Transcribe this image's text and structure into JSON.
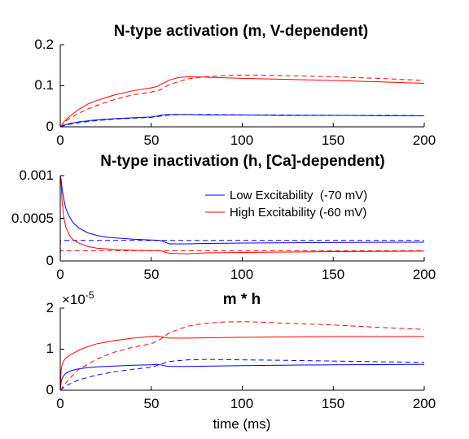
{
  "chart_data": [
    {
      "type": "line",
      "title": "N-type activation (m, V-dependent)",
      "xlabel": "",
      "ylabel": "",
      "xlim": [
        0,
        200
      ],
      "ylim": [
        0,
        0.2
      ],
      "xticks": [
        "0",
        "50",
        "100",
        "150",
        "200"
      ],
      "yticks": [
        "0",
        "0.1",
        "0.2"
      ],
      "exponent_label": "",
      "grid": false,
      "series": [
        {
          "color": "#0000ff",
          "dash": "solid",
          "x": [
            0,
            2,
            5,
            10,
            20,
            30,
            40,
            50,
            53,
            56,
            60,
            70,
            80,
            100,
            120,
            150,
            180,
            200
          ],
          "y": [
            0,
            0.004,
            0.008,
            0.012,
            0.017,
            0.02,
            0.022,
            0.024,
            0.026,
            0.029,
            0.03,
            0.03,
            0.029,
            0.029,
            0.028,
            0.028,
            0.027,
            0.027
          ]
        },
        {
          "color": "#0000ff",
          "dash": "dashed",
          "x": [
            0,
            2,
            5,
            10,
            20,
            30,
            40,
            50,
            55,
            60,
            70,
            80,
            100,
            120,
            150,
            180,
            200
          ],
          "y": [
            0,
            0.003,
            0.006,
            0.01,
            0.015,
            0.019,
            0.021,
            0.023,
            0.026,
            0.029,
            0.03,
            0.03,
            0.029,
            0.029,
            0.028,
            0.028,
            0.027
          ]
        },
        {
          "color": "#ff0000",
          "dash": "solid",
          "x": [
            0,
            2,
            5,
            10,
            15,
            20,
            30,
            40,
            50,
            53,
            56,
            60,
            65,
            70,
            80,
            100,
            120,
            150,
            180,
            200
          ],
          "y": [
            0,
            0.012,
            0.025,
            0.042,
            0.055,
            0.064,
            0.078,
            0.088,
            0.095,
            0.098,
            0.105,
            0.114,
            0.12,
            0.122,
            0.121,
            0.118,
            0.116,
            0.113,
            0.109,
            0.106
          ]
        },
        {
          "color": "#ff0000",
          "dash": "dashed",
          "x": [
            0,
            2,
            5,
            10,
            15,
            20,
            30,
            40,
            50,
            55,
            60,
            70,
            80,
            90,
            100,
            110,
            120,
            150,
            180,
            200
          ],
          "y": [
            0,
            0.01,
            0.02,
            0.033,
            0.043,
            0.052,
            0.067,
            0.078,
            0.085,
            0.09,
            0.103,
            0.117,
            0.122,
            0.125,
            0.126,
            0.126,
            0.125,
            0.122,
            0.117,
            0.113
          ]
        }
      ]
    },
    {
      "type": "line",
      "title": "N-type inactivation (h, [Ca]-dependent)",
      "xlabel": "",
      "ylabel": "",
      "xlim": [
        0,
        200
      ],
      "ylim": [
        0,
        0.001
      ],
      "xticks": [
        "0",
        "50",
        "100",
        "150",
        "200"
      ],
      "yticks": [
        "0",
        "0.0005",
        "0.001"
      ],
      "exponent_label": "",
      "grid": false,
      "legend": {
        "placement": "top-right",
        "entries": [
          {
            "label": "Low Excitability  (-70 mV)",
            "color": "#0000ff"
          },
          {
            "label": "High Excitability (-60 mV)",
            "color": "#ff0000"
          }
        ]
      },
      "series": [
        {
          "color": "#0000ff",
          "dash": "solid",
          "x": [
            0,
            0.5,
            1,
            2,
            3,
            5,
            7,
            10,
            15,
            20,
            25,
            30,
            40,
            50,
            55,
            58,
            60,
            70,
            80,
            100,
            150,
            200
          ],
          "y": [
            0.001,
            0.00095,
            0.00085,
            0.00072,
            0.00062,
            0.00052,
            0.00045,
            0.00039,
            0.00033,
            0.0003,
            0.00028,
            0.00027,
            0.000255,
            0.000245,
            0.00024,
            0.000215,
            0.0002,
            0.0002,
            0.000205,
            0.00021,
            0.000215,
            0.00022
          ]
        },
        {
          "color": "#0000ff",
          "dash": "dashed",
          "x": [
            0,
            0.1,
            1,
            10,
            50,
            100,
            150,
            200
          ],
          "y": [
            0,
            0.00024,
            0.00024,
            0.00024,
            0.00024,
            0.00024,
            0.00024,
            0.00024
          ]
        },
        {
          "color": "#ff0000",
          "dash": "solid",
          "x": [
            0,
            0.5,
            1,
            2,
            3,
            5,
            7,
            10,
            15,
            20,
            30,
            40,
            50,
            55,
            58,
            60,
            70,
            80,
            100,
            150,
            200
          ],
          "y": [
            0.001,
            0.0009,
            0.0007,
            0.0005,
            0.0004,
            0.0003,
            0.00025,
            0.00021,
            0.00017,
            0.00015,
            0.000135,
            0.000125,
            0.00012,
            0.00012,
            0.0001,
            9e-05,
            8.5e-05,
            9.5e-05,
            0.0001,
            0.00011,
            0.000115
          ]
        },
        {
          "color": "#ff0000",
          "dash": "dashed",
          "x": [
            0,
            0.1,
            1,
            10,
            50,
            100,
            150,
            200
          ],
          "y": [
            0,
            0.00012,
            0.00012,
            0.00012,
            0.00012,
            0.00012,
            0.00012,
            0.00012
          ]
        }
      ]
    },
    {
      "type": "line",
      "title": "m * h",
      "xlabel": "time (ms)",
      "ylabel": "",
      "xlim": [
        0,
        200
      ],
      "ylim": [
        0,
        2
      ],
      "xticks": [
        "0",
        "50",
        "100",
        "150",
        "200"
      ],
      "yticks": [
        "0",
        "1",
        "2"
      ],
      "exponent_label": "×10",
      "exponent_power": "-5",
      "grid": false,
      "series": [
        {
          "color": "#0000ff",
          "dash": "solid",
          "x": [
            0,
            0.5,
            1,
            2,
            3,
            5,
            8,
            10,
            15,
            20,
            30,
            40,
            50,
            53,
            56,
            58,
            60,
            70,
            100,
            150,
            200
          ],
          "y": [
            0,
            0.2,
            0.28,
            0.36,
            0.41,
            0.46,
            0.5,
            0.52,
            0.55,
            0.57,
            0.59,
            0.61,
            0.62,
            0.63,
            0.61,
            0.59,
            0.58,
            0.58,
            0.6,
            0.62,
            0.63
          ]
        },
        {
          "color": "#0000ff",
          "dash": "dashed",
          "x": [
            0,
            2,
            5,
            10,
            20,
            30,
            40,
            50,
            55,
            60,
            70,
            80,
            100,
            120,
            150,
            180,
            200
          ],
          "y": [
            0,
            0.07,
            0.15,
            0.25,
            0.37,
            0.45,
            0.51,
            0.56,
            0.63,
            0.7,
            0.74,
            0.75,
            0.74,
            0.73,
            0.71,
            0.69,
            0.68
          ]
        },
        {
          "color": "#ff0000",
          "dash": "solid",
          "x": [
            0,
            0.5,
            1,
            2,
            3,
            5,
            8,
            10,
            15,
            20,
            30,
            40,
            50,
            53,
            56,
            58,
            60,
            70,
            100,
            150,
            200
          ],
          "y": [
            0,
            0.5,
            0.62,
            0.72,
            0.78,
            0.85,
            0.92,
            0.97,
            1.06,
            1.13,
            1.21,
            1.27,
            1.31,
            1.32,
            1.3,
            1.28,
            1.27,
            1.27,
            1.29,
            1.31,
            1.31
          ]
        },
        {
          "color": "#ff0000",
          "dash": "dashed",
          "x": [
            0,
            2,
            5,
            10,
            20,
            30,
            40,
            50,
            55,
            60,
            70,
            80,
            90,
            100,
            110,
            120,
            150,
            180,
            200
          ],
          "y": [
            0,
            0.12,
            0.28,
            0.5,
            0.76,
            0.93,
            1.05,
            1.13,
            1.24,
            1.4,
            1.56,
            1.63,
            1.66,
            1.67,
            1.66,
            1.64,
            1.59,
            1.52,
            1.48
          ]
        }
      ]
    }
  ]
}
